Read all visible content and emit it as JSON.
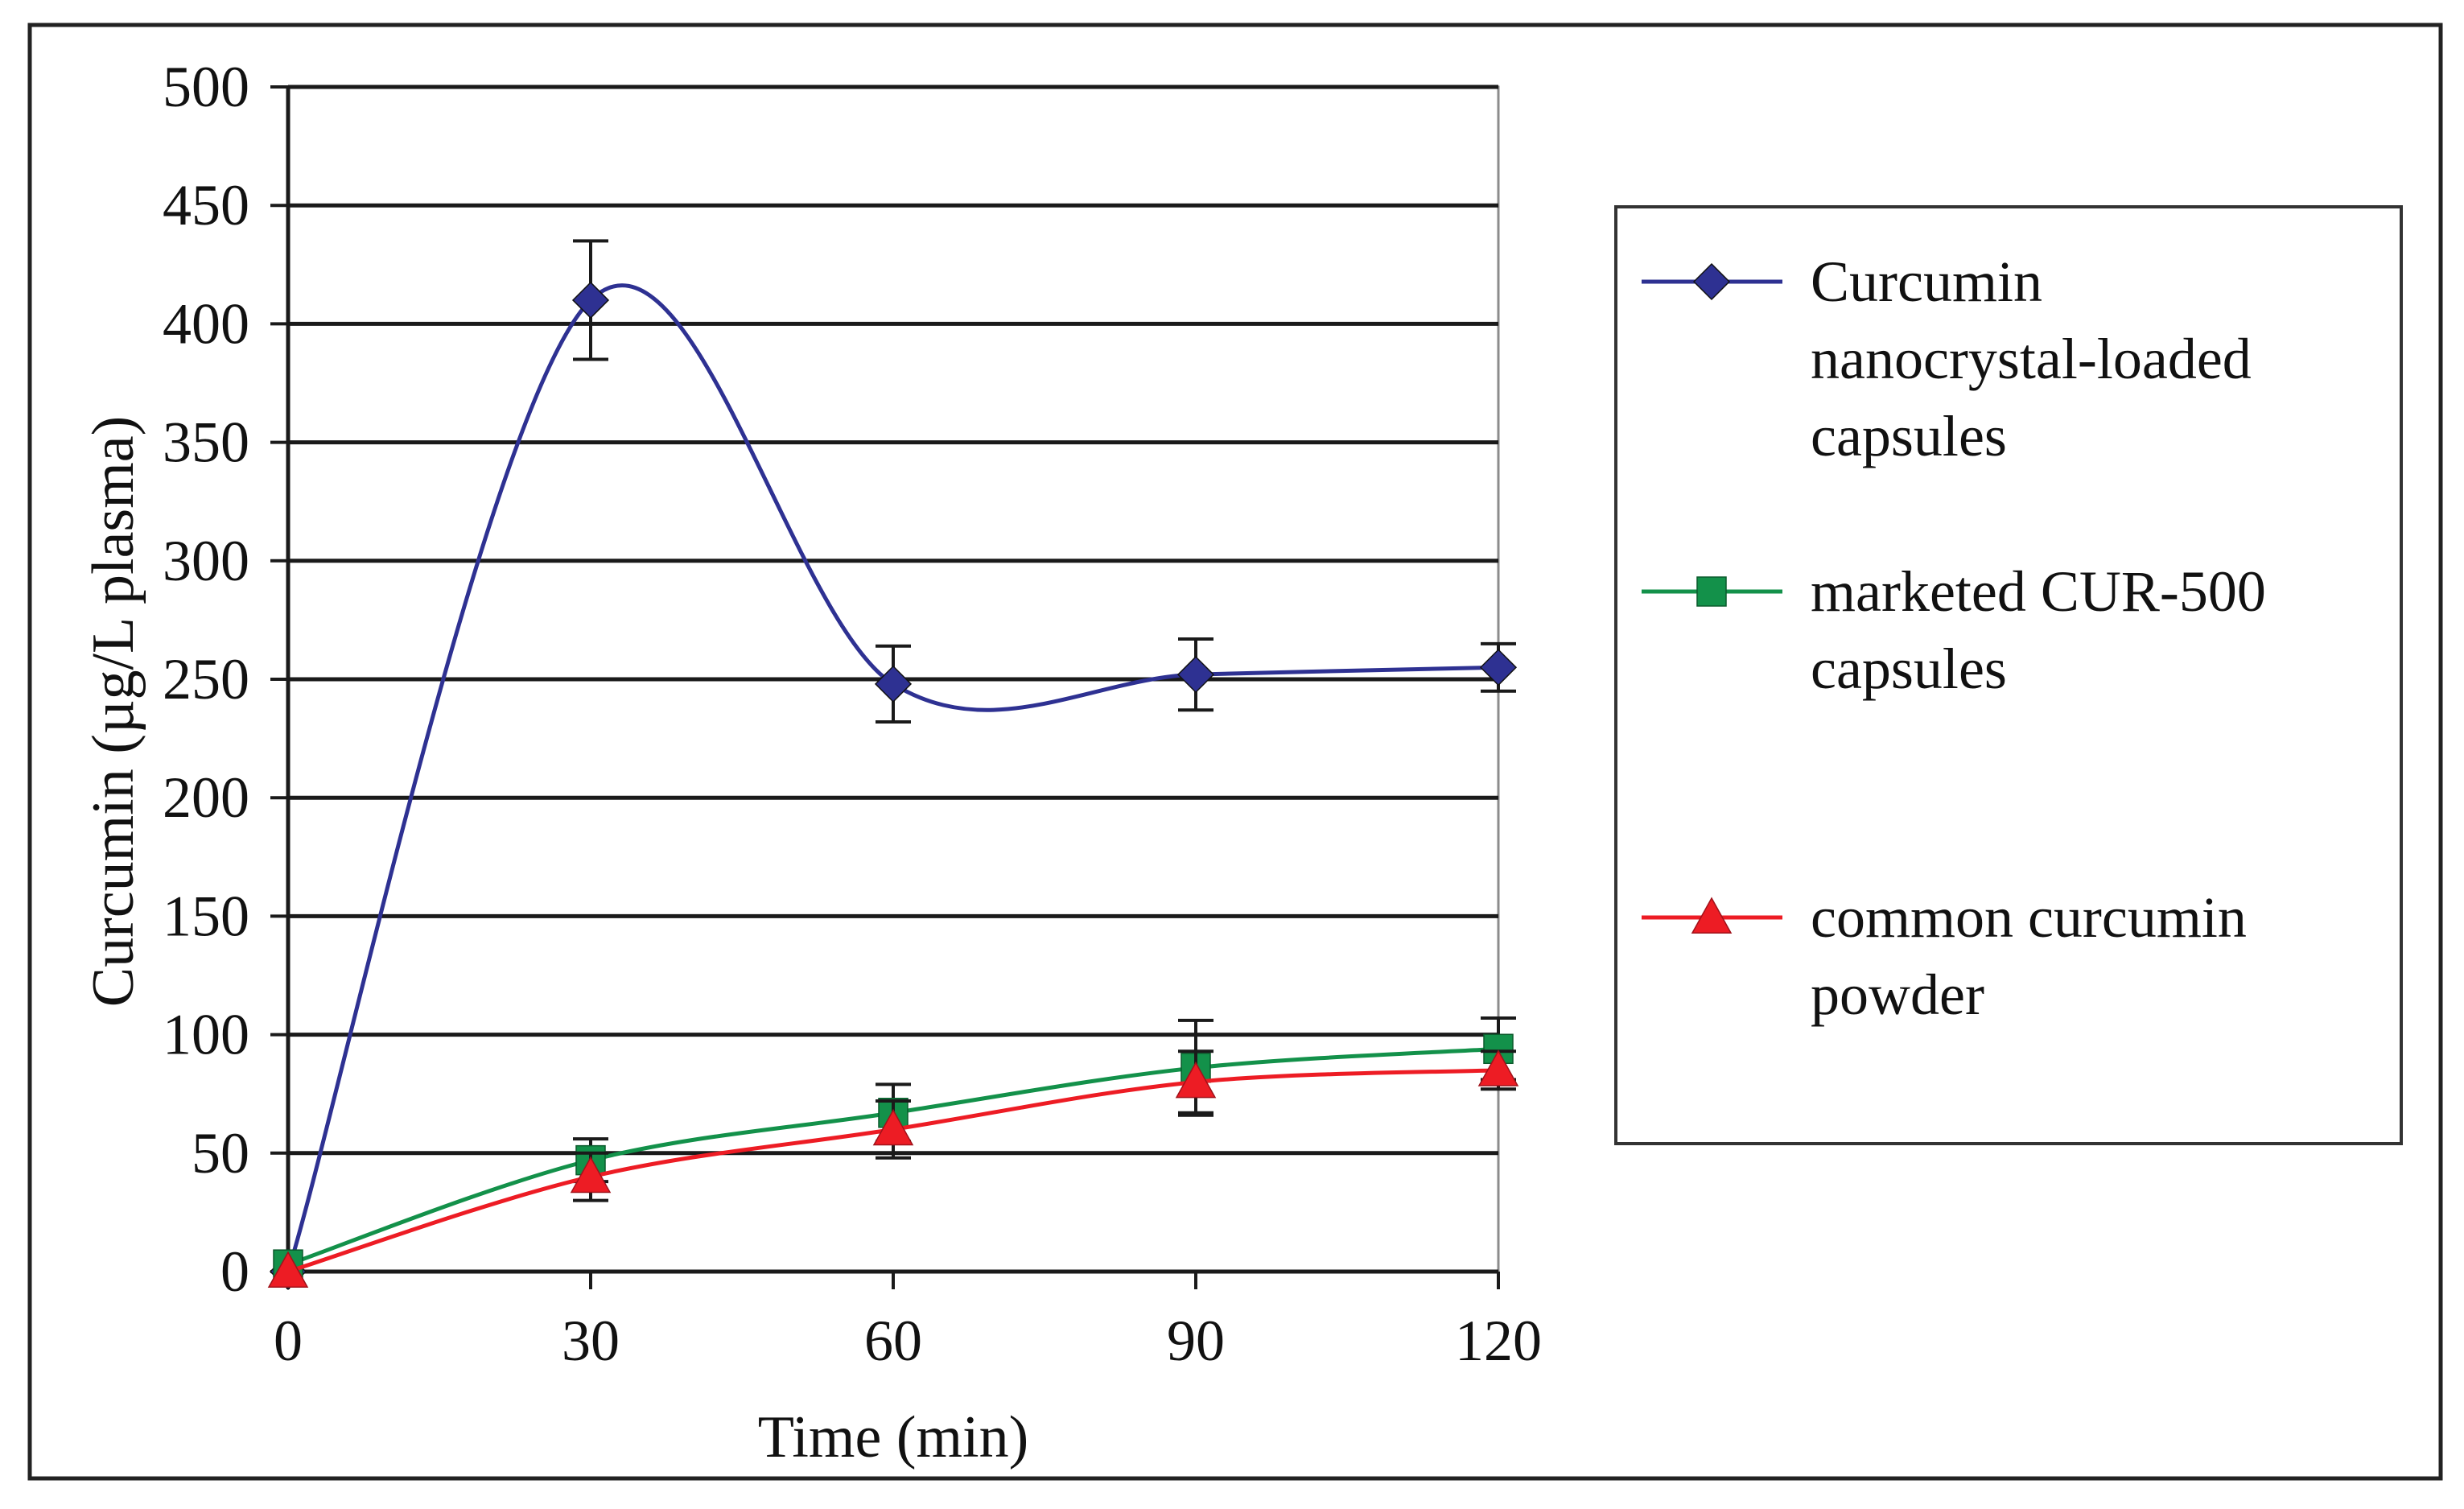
{
  "chart_data": {
    "type": "line",
    "title": "",
    "xlabel": "Time (min)",
    "ylabel": "Curcumin (µg/L plasma)",
    "x": [
      0,
      30,
      60,
      90,
      120
    ],
    "xticks": [
      "0",
      "30",
      "60",
      "90",
      "120"
    ],
    "yticks": [
      "0",
      "50",
      "100",
      "150",
      "200",
      "250",
      "300",
      "350",
      "400",
      "450",
      "500"
    ],
    "xlim": [
      0,
      120
    ],
    "ylim": [
      0,
      500
    ],
    "grid": "horizontal",
    "legend_position": "right",
    "series": [
      {
        "name": "Curcumin nanocrystal-loaded capsules",
        "legend_lines": [
          "Curcumin",
          "nanocrystal-loaded",
          "capsules"
        ],
        "values": [
          0,
          410,
          248,
          252,
          255
        ],
        "errors": [
          0,
          25,
          16,
          15,
          10
        ],
        "color": "#2e3192",
        "marker": "diamond"
      },
      {
        "name": "marketed CUR-500 capsules",
        "legend_lines": [
          "marketed CUR-500",
          "capsules"
        ],
        "values": [
          3,
          47,
          67,
          86,
          94
        ],
        "errors": [
          0,
          9,
          12,
          20,
          13
        ],
        "color": "#13914a",
        "marker": "square"
      },
      {
        "name": "common curcumin powder",
        "legend_lines": [
          "common curcumin",
          "powder"
        ],
        "values": [
          0,
          40,
          60,
          80,
          85
        ],
        "errors": [
          0,
          10,
          12,
          13,
          8
        ],
        "color": "#ed1c24",
        "marker": "triangle"
      }
    ]
  }
}
